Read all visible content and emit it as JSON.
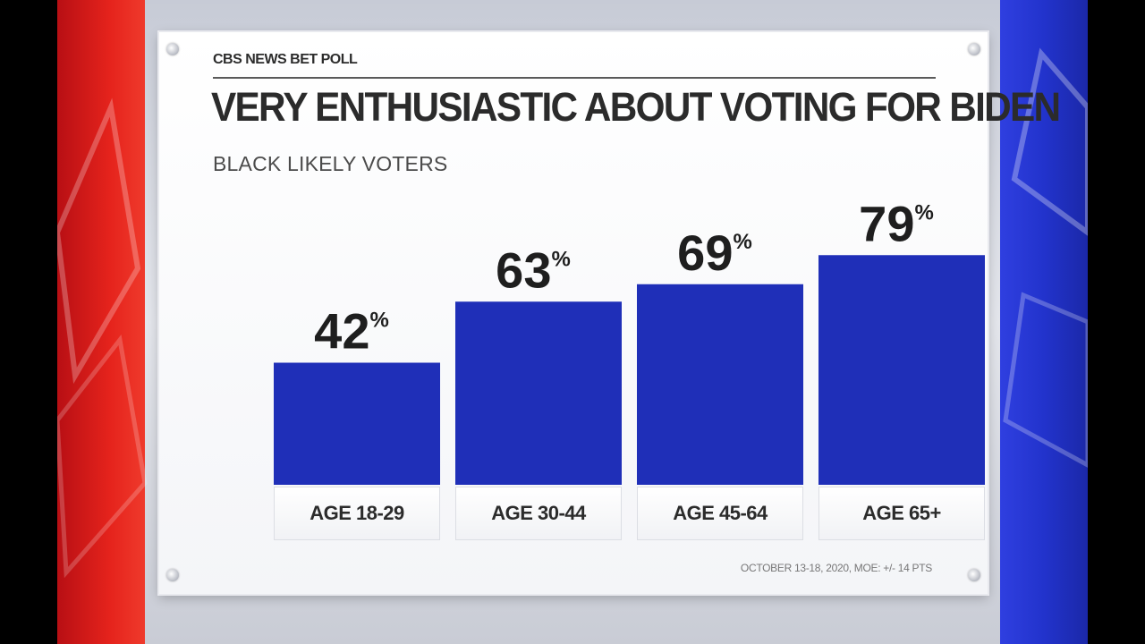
{
  "brand": "CBS NEWS BET POLL",
  "title": "VERY ENTHUSIASTIC ABOUT VOTING FOR BIDEN",
  "subtitle": "BLACK LIKELY VOTERS",
  "footnote": "OCTOBER 13-18, 2020, MOE: +/- 14 PTS",
  "value_suffix": "%",
  "colors": {
    "bar": "#1f2fb8",
    "left_panel": "#e5231c",
    "right_panel": "#2233cc"
  },
  "chart_data": {
    "type": "bar",
    "categories": [
      "AGE 18-29",
      "AGE 30-44",
      "AGE 45-64",
      "AGE 65+"
    ],
    "values": [
      42,
      63,
      69,
      79
    ],
    "unit": "%",
    "title": "VERY ENTHUSIASTIC ABOUT VOTING FOR BIDEN",
    "subtitle": "BLACK LIKELY VOTERS",
    "ylim": [
      0,
      100
    ],
    "grid": false,
    "legend": "none"
  }
}
